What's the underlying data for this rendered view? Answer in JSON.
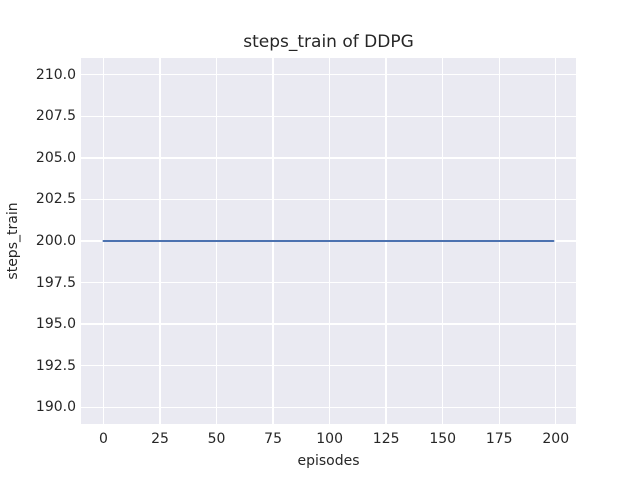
{
  "chart_data": {
    "type": "line",
    "title": "steps_train of DDPG",
    "xlabel": "episodes",
    "ylabel": "steps_train",
    "xlim": [
      -9.95,
      208.95
    ],
    "ylim": [
      189,
      211
    ],
    "x_ticks": [
      0,
      25,
      50,
      75,
      100,
      125,
      150,
      175,
      200
    ],
    "x_tick_labels": [
      "0",
      "25",
      "50",
      "75",
      "100",
      "125",
      "150",
      "175",
      "200"
    ],
    "y_ticks": [
      190.0,
      192.5,
      195.0,
      197.5,
      200.0,
      202.5,
      205.0,
      207.5,
      210.0
    ],
    "y_tick_labels": [
      "190.0",
      "192.5",
      "195.0",
      "197.5",
      "200.0",
      "202.5",
      "205.0",
      "207.5",
      "210.0"
    ],
    "grid": true,
    "legend_position": "none",
    "series": [
      {
        "name": "steps_train",
        "color": "#4C72B0",
        "x": [
          0,
          199
        ],
        "y": [
          200,
          200
        ]
      }
    ],
    "colors": {
      "figure_background": "#FFFFFF",
      "plot_background": "#EAEAF2",
      "gridline": "#FFFFFF",
      "text": "#262626",
      "line": "#4C72B0"
    }
  }
}
